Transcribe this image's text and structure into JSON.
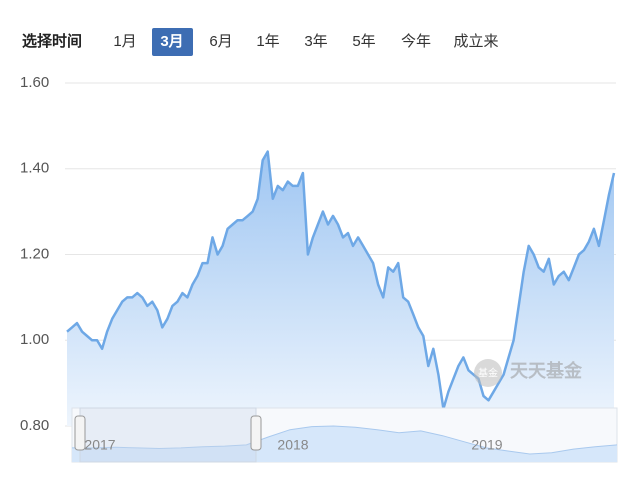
{
  "toolbar": {
    "label": "选择时间",
    "options": [
      "1月",
      "3月",
      "6月",
      "1年",
      "3年",
      "5年",
      "今年",
      "成立来"
    ],
    "selected": 1
  },
  "chart_data": {
    "type": "area",
    "color": "#6ea8e6",
    "values": [
      1.02,
      1.03,
      1.04,
      1.02,
      1.01,
      1.0,
      1.0,
      0.98,
      1.02,
      1.05,
      1.07,
      1.09,
      1.1,
      1.1,
      1.11,
      1.1,
      1.08,
      1.09,
      1.07,
      1.03,
      1.05,
      1.08,
      1.09,
      1.11,
      1.1,
      1.13,
      1.15,
      1.18,
      1.18,
      1.24,
      1.2,
      1.22,
      1.26,
      1.27,
      1.28,
      1.28,
      1.29,
      1.3,
      1.33,
      1.42,
      1.44,
      1.33,
      1.36,
      1.35,
      1.37,
      1.36,
      1.36,
      1.39,
      1.2,
      1.24,
      1.27,
      1.3,
      1.27,
      1.29,
      1.27,
      1.24,
      1.25,
      1.22,
      1.24,
      1.22,
      1.2,
      1.18,
      1.13,
      1.1,
      1.17,
      1.16,
      1.18,
      1.1,
      1.09,
      1.06,
      1.03,
      1.01,
      0.94,
      0.98,
      0.92,
      0.84,
      0.88,
      0.91,
      0.94,
      0.96,
      0.93,
      0.92,
      0.91,
      0.87,
      0.86,
      0.88,
      0.9,
      0.92,
      0.96,
      1.0,
      1.08,
      1.16,
      1.22,
      1.2,
      1.17,
      1.16,
      1.19,
      1.13,
      1.15,
      1.16,
      1.14,
      1.17,
      1.2,
      1.21,
      1.23,
      1.26,
      1.22,
      1.28,
      1.34,
      1.39
    ],
    "ylim": [
      0.8,
      1.6
    ],
    "yticks": [
      {
        "value": 0.8,
        "label": "0.80"
      },
      {
        "value": 1.0,
        "label": "1.00"
      },
      {
        "value": 1.2,
        "label": "1.20"
      },
      {
        "value": 1.4,
        "label": "1.40"
      },
      {
        "value": 1.6,
        "label": "1.60"
      }
    ],
    "grid": true,
    "navigator": {
      "labels": [
        "2017",
        "2018",
        "2019"
      ],
      "values": [
        1.0,
        1.0,
        1.01,
        1.0,
        0.99,
        1.0,
        1.02,
        1.03,
        1.05,
        1.18,
        1.3,
        1.35,
        1.36,
        1.34,
        1.3,
        1.25,
        1.28,
        1.2,
        1.1,
        1.0,
        0.95,
        0.9,
        0.92,
        0.98,
        1.02,
        1.05
      ]
    },
    "watermark": {
      "logo": "基金",
      "text": "天天基金"
    }
  }
}
